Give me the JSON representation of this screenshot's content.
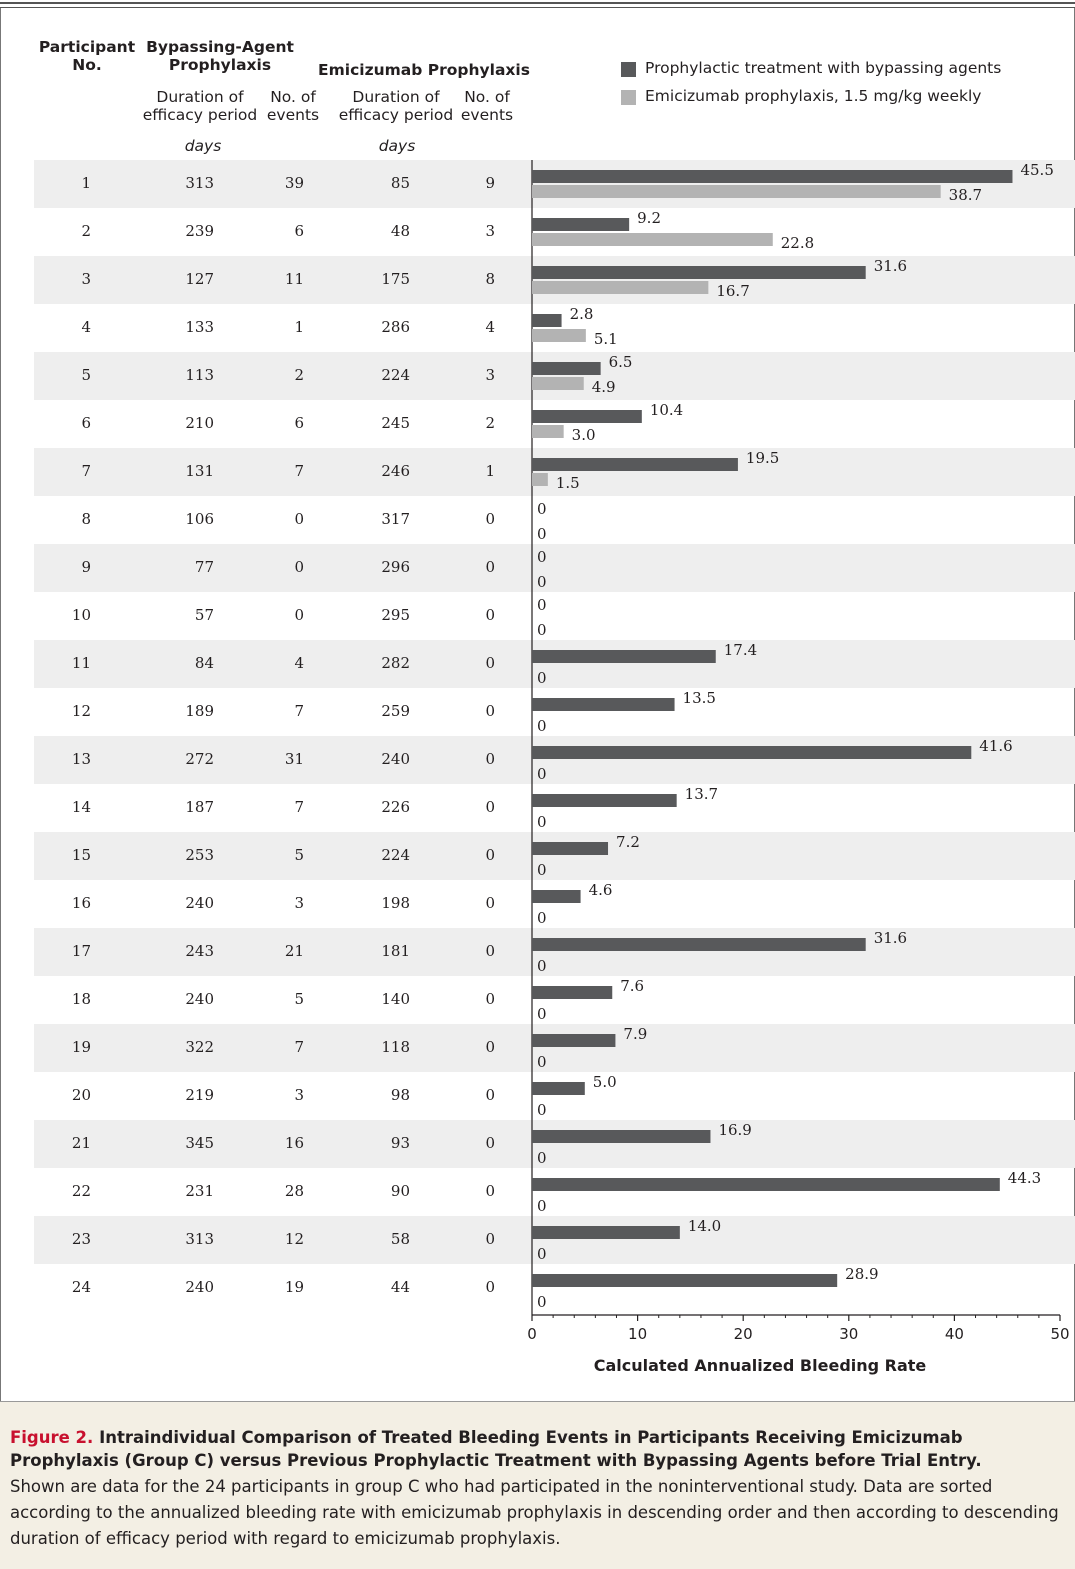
{
  "headers": {
    "participant": [
      "Participant",
      "No."
    ],
    "bypassing_group": [
      "Bypassing-Agent",
      "Prophylaxis"
    ],
    "emicizumab_group": "Emicizumab Prophylaxis",
    "duration": [
      "Duration of",
      "efficacy period"
    ],
    "events": [
      "No. of",
      "events"
    ],
    "days": "days"
  },
  "legend": [
    {
      "label": "Prophylactic treatment with bypassing agents",
      "color": "#58595b"
    },
    {
      "label": "Emicizumab prophylaxis, 1.5 mg/kg weekly",
      "color": "#b3b3b3"
    }
  ],
  "table_rows": [
    {
      "participant": "1",
      "bp_days": "313",
      "bp_events": "39",
      "em_days": "85",
      "em_events": "9"
    },
    {
      "participant": "2",
      "bp_days": "239",
      "bp_events": "6",
      "em_days": "48",
      "em_events": "3"
    },
    {
      "participant": "3",
      "bp_days": "127",
      "bp_events": "11",
      "em_days": "175",
      "em_events": "8"
    },
    {
      "participant": "4",
      "bp_days": "133",
      "bp_events": "1",
      "em_days": "286",
      "em_events": "4"
    },
    {
      "participant": "5",
      "bp_days": "113",
      "bp_events": "2",
      "em_days": "224",
      "em_events": "3"
    },
    {
      "participant": "6",
      "bp_days": "210",
      "bp_events": "6",
      "em_days": "245",
      "em_events": "2"
    },
    {
      "participant": "7",
      "bp_days": "131",
      "bp_events": "7",
      "em_days": "246",
      "em_events": "1"
    },
    {
      "participant": "8",
      "bp_days": "106",
      "bp_events": "0",
      "em_days": "317",
      "em_events": "0"
    },
    {
      "participant": "9",
      "bp_days": "77",
      "bp_events": "0",
      "em_days": "296",
      "em_events": "0"
    },
    {
      "participant": "10",
      "bp_days": "57",
      "bp_events": "0",
      "em_days": "295",
      "em_events": "0"
    },
    {
      "participant": "11",
      "bp_days": "84",
      "bp_events": "4",
      "em_days": "282",
      "em_events": "0"
    },
    {
      "participant": "12",
      "bp_days": "189",
      "bp_events": "7",
      "em_days": "259",
      "em_events": "0"
    },
    {
      "participant": "13",
      "bp_days": "272",
      "bp_events": "31",
      "em_days": "240",
      "em_events": "0"
    },
    {
      "participant": "14",
      "bp_days": "187",
      "bp_events": "7",
      "em_days": "226",
      "em_events": "0"
    },
    {
      "participant": "15",
      "bp_days": "253",
      "bp_events": "5",
      "em_days": "224",
      "em_events": "0"
    },
    {
      "participant": "16",
      "bp_days": "240",
      "bp_events": "3",
      "em_days": "198",
      "em_events": "0"
    },
    {
      "participant": "17",
      "bp_days": "243",
      "bp_events": "21",
      "em_days": "181",
      "em_events": "0"
    },
    {
      "participant": "18",
      "bp_days": "240",
      "bp_events": "5",
      "em_days": "140",
      "em_events": "0"
    },
    {
      "participant": "19",
      "bp_days": "322",
      "bp_events": "7",
      "em_days": "118",
      "em_events": "0"
    },
    {
      "participant": "20",
      "bp_days": "219",
      "bp_events": "3",
      "em_days": "98",
      "em_events": "0"
    },
    {
      "participant": "21",
      "bp_days": "345",
      "bp_events": "16",
      "em_days": "93",
      "em_events": "0"
    },
    {
      "participant": "22",
      "bp_days": "231",
      "bp_events": "28",
      "em_days": "90",
      "em_events": "0"
    },
    {
      "participant": "23",
      "bp_days": "313",
      "bp_events": "12",
      "em_days": "58",
      "em_events": "0"
    },
    {
      "participant": "24",
      "bp_days": "240",
      "bp_events": "19",
      "em_days": "44",
      "em_events": "0"
    }
  ],
  "chart_data": {
    "type": "bar",
    "orientation": "horizontal",
    "categories": [
      "1",
      "2",
      "3",
      "4",
      "5",
      "6",
      "7",
      "8",
      "9",
      "10",
      "11",
      "12",
      "13",
      "14",
      "15",
      "16",
      "17",
      "18",
      "19",
      "20",
      "21",
      "22",
      "23",
      "24"
    ],
    "series": [
      {
        "name": "Prophylactic treatment with bypassing agents",
        "values": [
          45.5,
          9.2,
          31.6,
          2.8,
          6.5,
          10.4,
          19.5,
          0,
          0,
          0,
          17.4,
          13.5,
          41.6,
          13.7,
          7.2,
          4.6,
          31.6,
          7.6,
          7.9,
          5.0,
          16.9,
          44.3,
          14.0,
          28.9
        ],
        "labels": [
          "45.5",
          "9.2",
          "31.6",
          "2.8",
          "6.5",
          "10.4",
          "19.5",
          "0",
          "0",
          "0",
          "17.4",
          "13.5",
          "41.6",
          "13.7",
          "7.2",
          "4.6",
          "31.6",
          "7.6",
          "7.9",
          "5.0",
          "16.9",
          "44.3",
          "14.0",
          "28.9"
        ],
        "color": "#58595b"
      },
      {
        "name": "Emicizumab prophylaxis, 1.5 mg/kg weekly",
        "values": [
          38.7,
          22.8,
          16.7,
          5.1,
          4.9,
          3.0,
          1.5,
          0,
          0,
          0,
          0,
          0,
          0,
          0,
          0,
          0,
          0,
          0,
          0,
          0,
          0,
          0,
          0,
          0
        ],
        "labels": [
          "38.7",
          "22.8",
          "16.7",
          "5.1",
          "4.9",
          "3.0",
          "1.5",
          "0",
          "0",
          "0",
          "0",
          "0",
          "0",
          "0",
          "0",
          "0",
          "0",
          "0",
          "0",
          "0",
          "0",
          "0",
          "0",
          "0"
        ],
        "color": "#b3b3b3"
      }
    ],
    "xlabel": "Calculated Annualized Bleeding Rate",
    "xlim": [
      0,
      50
    ],
    "xticks": [
      "0",
      "10",
      "20",
      "30",
      "40",
      "50"
    ],
    "grid": false,
    "legend_position": "top-right"
  },
  "caption": {
    "figure_label": "Figure 2.",
    "title": "Intraindividual Comparison of Treated Bleeding Events in Participants Receiving Emicizumab Prophylaxis (Group C) versus Previous Prophylactic Treatment with Bypassing Agents before Trial Entry.",
    "body": "Shown are data for the 24 participants in group C who had participated in the noninterventional study. Data are sorted according to the annualized bleeding rate with emicizumab prophylaxis in descending order and then according to descending duration of efficacy period with regard to emicizumab prophylaxis."
  }
}
